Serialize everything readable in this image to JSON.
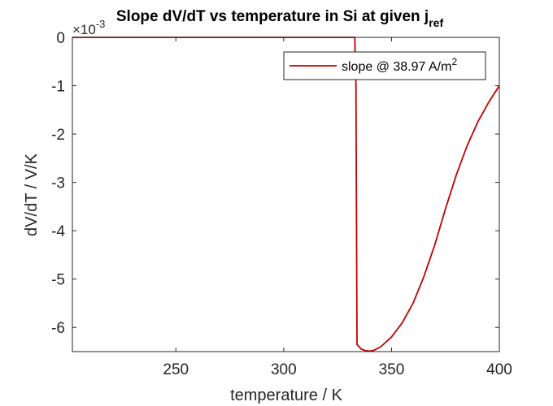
{
  "chart_data": {
    "type": "line",
    "title": "Slope dV/dT vs temperature in Si at given j",
    "title_subscript": "ref",
    "xlabel": "temperature / K",
    "ylabel": "dV/dT / V/K",
    "y_exponent": "×10",
    "y_exponent_power": "-3",
    "xlim": [
      202,
      400
    ],
    "ylim": [
      -6.5,
      0
    ],
    "x_ticks": [
      "250",
      "300",
      "350",
      "400"
    ],
    "y_ticks": [
      "0",
      "-1",
      "-2",
      "-3",
      "-4",
      "-5",
      "-6"
    ],
    "grid": false,
    "legend_position": "top-right",
    "series": [
      {
        "name": "slope @ 38.97 A/m",
        "name_superscript": "2",
        "color": "#c00000",
        "x": [
          202,
          333,
          333.5,
          334,
          336,
          338,
          340,
          342,
          345,
          350,
          355,
          360,
          365,
          370,
          375,
          380,
          385,
          390,
          395,
          400
        ],
        "y": [
          0,
          0,
          -1.0,
          -6.35,
          -6.45,
          -6.48,
          -6.49,
          -6.47,
          -6.4,
          -6.2,
          -5.9,
          -5.5,
          -4.95,
          -4.3,
          -3.55,
          -2.85,
          -2.25,
          -1.75,
          -1.35,
          -1.0
        ]
      }
    ]
  }
}
